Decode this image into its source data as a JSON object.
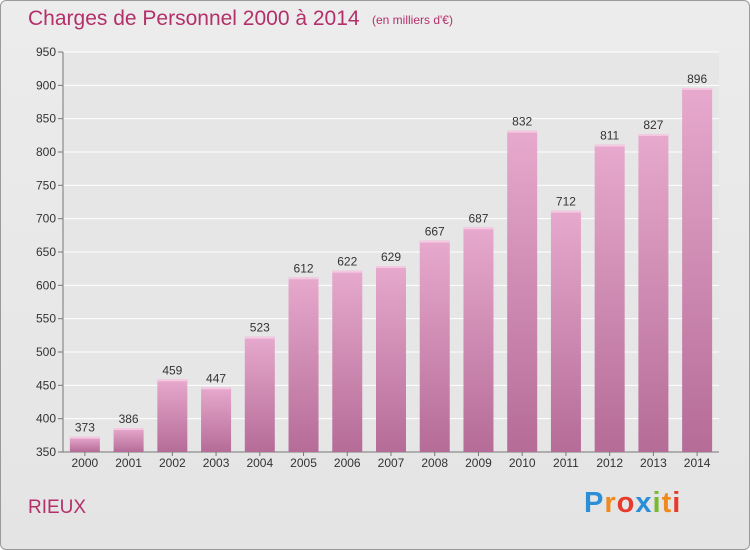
{
  "header": {
    "title": "Charges de Personnel 2000 à 2014",
    "subtitle": "(en milliers d'€)"
  },
  "footer": {
    "commune": "RIEUX",
    "logo": "Proxiti",
    "logo_colors": [
      "#2a8fd6",
      "#f08a1c",
      "#e8392b",
      "#2a8fd6",
      "#79b82f",
      "#f08a1c",
      "#e8392b"
    ]
  },
  "colors": {
    "bar_light": "#e7a9cd",
    "bar_dark": "#b56c97",
    "accent": "#b3306a"
  },
  "chart_data": {
    "type": "bar",
    "categories": [
      "2000",
      "2001",
      "2002",
      "2003",
      "2004",
      "2005",
      "2006",
      "2007",
      "2008",
      "2009",
      "2010",
      "2011",
      "2012",
      "2013",
      "2014"
    ],
    "values": [
      373,
      386,
      459,
      447,
      523,
      612,
      622,
      629,
      667,
      687,
      832,
      712,
      811,
      827,
      896
    ],
    "ylim": [
      350,
      950
    ],
    "yticks": [
      350,
      400,
      450,
      500,
      550,
      600,
      650,
      700,
      750,
      800,
      850,
      900,
      950
    ],
    "grid": true
  }
}
